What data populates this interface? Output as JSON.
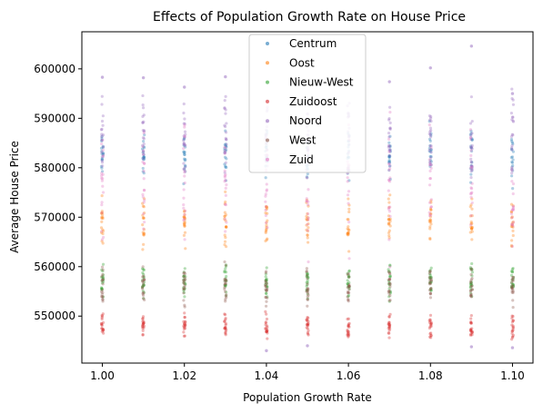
{
  "chart_data": {
    "type": "scatter",
    "title": "Effects of Population Growth Rate on House Price",
    "xlabel": "Population Growth Rate",
    "ylabel": "Average House Price",
    "xlim": [
      0.995,
      1.105
    ],
    "ylim": [
      540500,
      607500
    ],
    "xticks": [
      "1.00",
      "1.02",
      "1.04",
      "1.06",
      "1.08",
      "1.10"
    ],
    "xtick_values": [
      1.0,
      1.02,
      1.04,
      1.06,
      1.08,
      1.1
    ],
    "yticks": [
      "550000",
      "560000",
      "570000",
      "580000",
      "590000",
      "600000"
    ],
    "ytick_values": [
      550000,
      560000,
      570000,
      580000,
      590000,
      600000
    ],
    "x_values": [
      1.0,
      1.01,
      1.02,
      1.03,
      1.04,
      1.05,
      1.06,
      1.07,
      1.08,
      1.09,
      1.1
    ],
    "grid": false,
    "legend_position": "top-center",
    "marker_alpha": 0.35,
    "series": [
      {
        "name": "Centrum",
        "color": "#1f77b4",
        "y_range": [
          575000,
          590000
        ]
      },
      {
        "name": "Oost",
        "color": "#ff7f0e",
        "y_range": [
          562000,
          576000
        ]
      },
      {
        "name": "Nieuw-West",
        "color": "#2ca02c",
        "y_range": [
          552000,
          562000
        ]
      },
      {
        "name": "Zuidoost",
        "color": "#d62728",
        "y_range": [
          544000,
          551500
        ]
      },
      {
        "name": "Noord",
        "color": "#9467bd",
        "y_range": [
          576000,
          598000
        ]
      },
      {
        "name": "West",
        "color": "#8c564b",
        "y_range": [
          550000,
          562000
        ]
      },
      {
        "name": "Zuid",
        "color": "#e377c2",
        "y_range": [
          558000,
          595000
        ]
      }
    ],
    "notable_points": [
      {
        "x": 1.0,
        "y": 598300
      },
      {
        "x": 1.01,
        "y": 598200
      },
      {
        "x": 1.02,
        "y": 596300
      },
      {
        "x": 1.03,
        "y": 598400
      },
      {
        "x": 1.07,
        "y": 597400
      },
      {
        "x": 1.08,
        "y": 600200
      },
      {
        "x": 1.09,
        "y": 604600
      },
      {
        "x": 1.1,
        "y": 595000
      },
      {
        "x": 1.04,
        "y": 543000
      },
      {
        "x": 1.05,
        "y": 544000
      },
      {
        "x": 1.09,
        "y": 543800
      },
      {
        "x": 1.1,
        "y": 543600
      }
    ]
  }
}
